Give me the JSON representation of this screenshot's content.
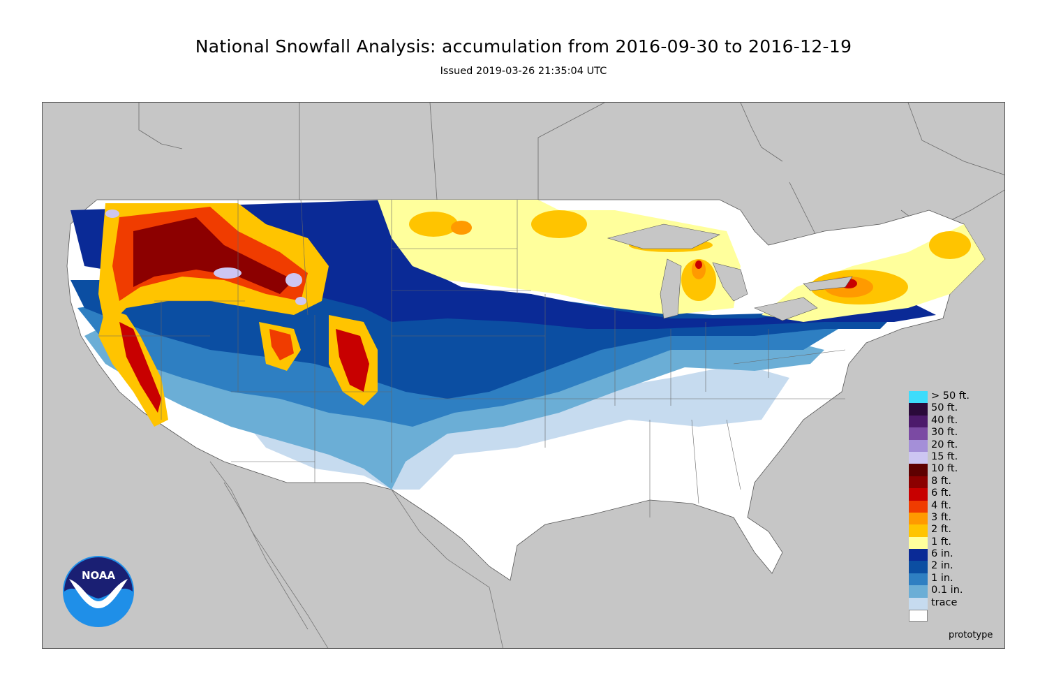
{
  "header": {
    "title": "National Snowfall Analysis: accumulation from 2016-09-30 to 2016-12-19",
    "issued": "Issued 2019-03-26 21:35:04 UTC"
  },
  "legend": {
    "items": [
      {
        "label": "> 50 ft.",
        "color": "#3ddcfb"
      },
      {
        "label": "50 ft.",
        "color": "#2a0a3a"
      },
      {
        "label": "40 ft.",
        "color": "#4c1a6b"
      },
      {
        "label": "30 ft.",
        "color": "#7b4aa3"
      },
      {
        "label": "20 ft.",
        "color": "#a48fd8"
      },
      {
        "label": "15 ft.",
        "color": "#cdc6f2"
      },
      {
        "label": "10 ft.",
        "color": "#5e0000"
      },
      {
        "label": "8 ft.",
        "color": "#8c0000"
      },
      {
        "label": "6 ft.",
        "color": "#c80000"
      },
      {
        "label": "4 ft.",
        "color": "#f03c00"
      },
      {
        "label": "3 ft.",
        "color": "#ff9a00"
      },
      {
        "label": "2 ft.",
        "color": "#ffc400"
      },
      {
        "label": "1 ft.",
        "color": "#ffff9c"
      },
      {
        "label": "6 in.",
        "color": "#0a2a96"
      },
      {
        "label": "2 in.",
        "color": "#0b4ea2"
      },
      {
        "label": "1 in.",
        "color": "#2e7fc2"
      },
      {
        "label": "0.1 in.",
        "color": "#6baed6"
      },
      {
        "label": "trace",
        "color": "#c6dbef"
      },
      {
        "label": "",
        "color": "#ffffff"
      }
    ]
  },
  "footer": {
    "prototype": "prototype"
  },
  "logo": {
    "text": "NOAA"
  },
  "colors": {
    "land_outside": "#c6c6c6",
    "snow_free": "#ffffff"
  }
}
